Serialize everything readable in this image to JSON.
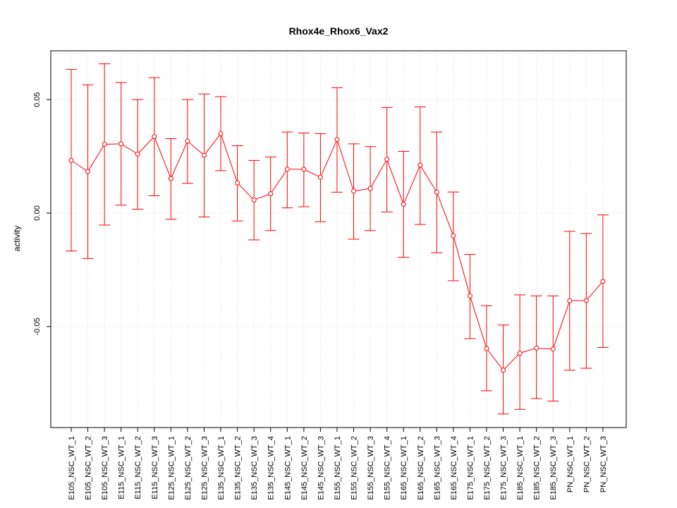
{
  "chart_data": {
    "type": "line",
    "title": "Rhox4e_Rhox6_Vax2",
    "xlabel": "",
    "ylabel": "activity",
    "categories": [
      "E105_NSC_WT_1",
      "E105_NSC_WT_2",
      "E105_NSC_WT_3",
      "E115_NSC_WT_1",
      "E115_NSC_WT_2",
      "E115_NSC_WT_3",
      "E125_NSC_WT_1",
      "E125_NSC_WT_2",
      "E125_NSC_WT_3",
      "E135_NSC_WT_1",
      "E135_NSC_WT_2",
      "E135_NSC_WT_3",
      "E135_NSC_WT_4",
      "E145_NSC_WT_1",
      "E145_NSC_WT_2",
      "E145_NSC_WT_3",
      "E155_NSC_WT_1",
      "E155_NSC_WT_2",
      "E155_NSC_WT_3",
      "E155_NSC_WT_4",
      "E165_NSC_WT_1",
      "E165_NSC_WT_2",
      "E165_NSC_WT_3",
      "E165_NSC_WT_4",
      "E175_NSC_WT_1",
      "E175_NSC_WT_2",
      "E175_NSC_WT_3",
      "E185_NSC_WT_1",
      "E185_NSC_WT_2",
      "E185_NSC_WT_3",
      "PN_NSC_WT_1",
      "PN_NSC_WT_2",
      "PN_NSC_WT_3"
    ],
    "series": [
      {
        "values": [
          0.0232,
          0.0183,
          0.0303,
          0.0305,
          0.026,
          0.0337,
          0.0152,
          0.0317,
          0.0255,
          0.035,
          0.0133,
          0.0058,
          0.0085,
          0.0193,
          0.0193,
          0.0158,
          0.0324,
          0.0097,
          0.0108,
          0.0237,
          0.0039,
          0.0211,
          0.0092,
          -0.01,
          -0.0365,
          -0.0597,
          -0.0692,
          -0.0617,
          -0.0595,
          -0.0599,
          -0.0386,
          -0.0385,
          -0.0301
        ],
        "lower": [
          -0.0167,
          -0.02,
          -0.0053,
          0.0035,
          0.0017,
          0.0076,
          -0.0027,
          0.0131,
          -0.0017,
          0.0187,
          -0.0035,
          -0.0118,
          -0.0077,
          0.0023,
          0.0028,
          -0.0038,
          0.0092,
          -0.0115,
          -0.0077,
          0.0005,
          -0.0195,
          -0.005,
          -0.0175,
          -0.0298,
          -0.0553,
          -0.0783,
          -0.0885,
          -0.0865,
          -0.0817,
          -0.0828,
          -0.0692,
          -0.0684,
          -0.0592
        ],
        "upper": [
          0.0633,
          0.0565,
          0.0658,
          0.0575,
          0.05,
          0.0597,
          0.0328,
          0.05,
          0.0525,
          0.0513,
          0.0297,
          0.0232,
          0.0247,
          0.0357,
          0.0353,
          0.035,
          0.0553,
          0.0305,
          0.0293,
          0.0465,
          0.0272,
          0.0468,
          0.0357,
          0.0093,
          -0.0182,
          -0.0408,
          -0.0493,
          -0.036,
          -0.0365,
          -0.0365,
          -0.008,
          -0.009,
          -0.0008
        ],
        "color": "#ff0000"
      }
    ],
    "yticks": [
      -0.05,
      0.0,
      0.05
    ],
    "ytick_labels": [
      "-0.05",
      "0.00",
      "0.05"
    ],
    "ylim": [
      -0.0945,
      0.0715
    ],
    "grid": true,
    "grid_color": "#d3d3d3",
    "axis_color": "#000000"
  }
}
